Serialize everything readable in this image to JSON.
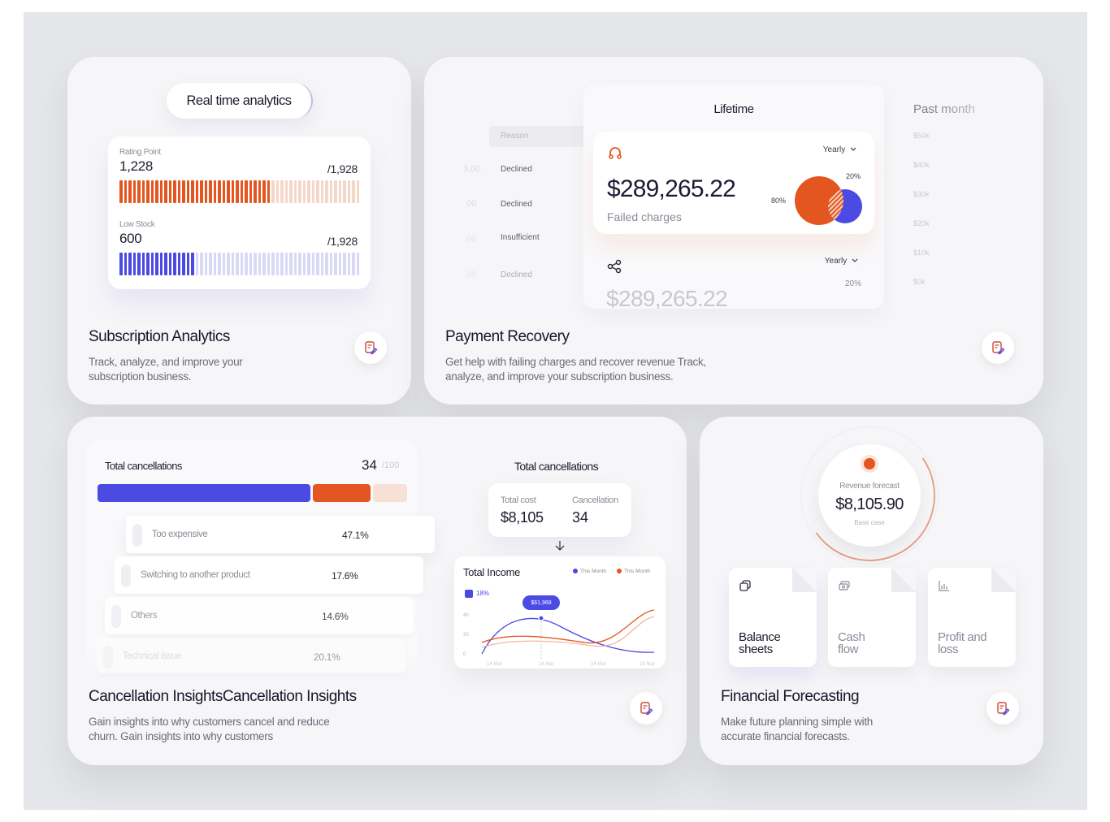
{
  "colors": {
    "accent_orange": "#e4561f",
    "accent_blue": "#4b4ae3",
    "pale_orange": "#f5d7c9",
    "pale_blue": "#d9d9f6"
  },
  "subscription": {
    "pill": "Real time analytics",
    "metrics": [
      {
        "label": "Rating Point",
        "value": "1,228",
        "total": "/1,928",
        "fraction": 0.637
      },
      {
        "label": "Low Stock",
        "value": "600",
        "total": "/1,928",
        "fraction": 0.311
      }
    ],
    "title": "Subscription Analytics",
    "desc_line1": "Track, analyze, and improve your",
    "desc_line2": "subscription business.",
    "icon": "edit-note-icon"
  },
  "payment": {
    "reason_header": "Reason",
    "reasons": [
      {
        "num": "3.00",
        "text": "Declined"
      },
      {
        "num": "00",
        "text": "Declined"
      },
      {
        "num": "00",
        "text": "Insufficient"
      },
      {
        "num": "00",
        "text": "Declined"
      }
    ],
    "lifetime_title": "Lifetime",
    "period_label": "Yearly",
    "amount": "$289,265.22",
    "failed_label": "Failed charges",
    "pct_small": "20%",
    "pct_large": "80%",
    "ghost_amount": "$289,265.22",
    "second_pct": "20%",
    "past_title": "Past month",
    "past_ticks": [
      "$50k",
      "$40k",
      "$30k",
      "$20k",
      "$10k",
      "$0k"
    ],
    "title": "Payment Recovery",
    "desc_line1": "Get help with failing charges and recover revenue Track,",
    "desc_line2": "analyze, and improve your subscription business.",
    "icon": "edit-note-icon"
  },
  "cancellation": {
    "total_label": "Total cancellations",
    "total_value": "34",
    "total_of": "/100",
    "rows": [
      {
        "name": "Too expensive",
        "pct": "47.1%"
      },
      {
        "name": "Switching to another product",
        "pct": "17.6%"
      },
      {
        "name": "Others",
        "pct": "14.6%"
      },
      {
        "name": "Technical issue",
        "pct": "20.1%"
      }
    ],
    "right_title": "Total cancellations",
    "cost_label": "Total cost",
    "cost_value": "$8,105",
    "cancel_label": "Cancellation",
    "cancel_value": "34",
    "income_title": "Total Income",
    "legend": [
      "This Month",
      "This Month"
    ],
    "badge": "18%",
    "tooltip": "$61,968",
    "y_ticks": [
      "40",
      "20",
      "0"
    ],
    "x_ticks": [
      "14 Mar",
      "16 Mar",
      "18 Mar",
      "19 Mar"
    ],
    "title": "Cancellation InsightsCancellation Insights",
    "desc_line1": "Gain insights into why customers cancel and reduce",
    "desc_line2": "churn. Gain insights into why customers",
    "icon": "edit-note-icon"
  },
  "forecast": {
    "label": "Revenue forecast",
    "value": "$8,105.90",
    "sub": "Base case",
    "docs": [
      {
        "line1": "Balance",
        "line2": "sheets",
        "icon": "copy-icon"
      },
      {
        "line1": "Cash",
        "line2": "flow",
        "icon": "cash-icon"
      },
      {
        "line1": "Profit and",
        "line2": "loss",
        "icon": "chart-icon"
      }
    ],
    "title": "Financial Forecasting",
    "desc_line1": "Make future planning simple with",
    "desc_line2": "accurate financial forecasts.",
    "icon": "edit-note-icon"
  }
}
